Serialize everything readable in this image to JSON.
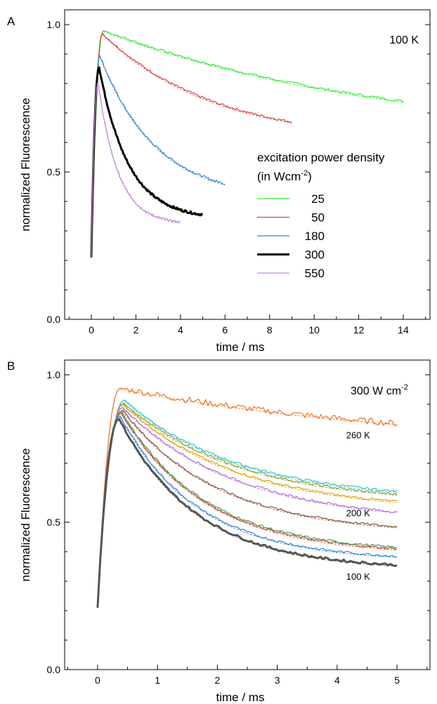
{
  "chart_data": [
    {
      "panel_label": "A",
      "type": "line",
      "xlabel": "time / ms",
      "ylabel": "normalized Fluorescence",
      "xlim": [
        -1.2,
        15.2
      ],
      "ylim": [
        0,
        1.05
      ],
      "x_ticks": [
        0,
        2,
        4,
        6,
        8,
        10,
        12,
        14
      ],
      "y_ticks": [
        0.0,
        0.5,
        1.0
      ],
      "y_tick_labels": [
        "0.0",
        "0.5",
        "1.0"
      ],
      "annotation": "100 K",
      "legend": {
        "title_line1": "excitation power density",
        "title_line2_prefix": "(in Wcm",
        "title_line2_sup": "-2",
        "title_line2_suffix": ")",
        "placement": "center-right",
        "entries": [
          "25",
          "50",
          "180",
          "300",
          "550"
        ]
      },
      "series": [
        {
          "name": "25",
          "color": "#2ee82e",
          "width": 1.2,
          "peak_t": 0.55,
          "peak": 0.98,
          "end_t": 14,
          "end": 0.74,
          "tau": 13
        },
        {
          "name": "50",
          "color": "#e04040",
          "width": 1.2,
          "peak_t": 0.5,
          "peak": 0.97,
          "end_t": 9,
          "end": 0.67,
          "tau": 5
        },
        {
          "name": "180",
          "color": "#3a7fd8",
          "width": 1.2,
          "peak_t": 0.38,
          "peak": 0.895,
          "end_t": 6,
          "end": 0.46,
          "tau": 2.5
        },
        {
          "name": "300",
          "color": "#000000",
          "width": 3,
          "peak_t": 0.35,
          "peak": 0.855,
          "end_t": 5,
          "end": 0.355,
          "tau": 1.3
        },
        {
          "name": "550",
          "color": "#c08ad8",
          "width": 1.2,
          "peak_t": 0.3,
          "peak": 0.805,
          "end_t": 4,
          "end": 0.33,
          "tau": 0.9
        }
      ]
    },
    {
      "panel_label": "B",
      "type": "line",
      "xlabel": "time / ms",
      "ylabel": "normalized Fluorescence",
      "xlim": [
        -0.55,
        5.55
      ],
      "ylim": [
        0,
        1.05
      ],
      "x_ticks": [
        0,
        1,
        2,
        3,
        4,
        5
      ],
      "y_ticks": [
        0.0,
        0.5,
        1.0
      ],
      "y_tick_labels": [
        "0.0",
        "0.5",
        "1.0"
      ],
      "annotation_main": "300 W cm",
      "annotation_sup": "-2",
      "curve_labels": [
        {
          "text": "260 K",
          "t": 4.55,
          "y": 0.785
        },
        {
          "text": "200 K",
          "t": 4.55,
          "y": 0.52
        },
        {
          "text": "100 K",
          "t": 4.55,
          "y": 0.305
        }
      ],
      "series": [
        {
          "label": "260 K",
          "color": "#f07020",
          "width": 1.2,
          "peak_t": 0.38,
          "peak": 0.955,
          "end": 0.835,
          "tau": 5
        },
        {
          "color": "#30c0d0",
          "width": 1.2,
          "peak_t": 0.45,
          "peak": 0.915,
          "end": 0.605,
          "tau": 1.9
        },
        {
          "color": "#8aa030",
          "width": 1.2,
          "peak_t": 0.44,
          "peak": 0.905,
          "end": 0.595,
          "tau": 1.9
        },
        {
          "color": "#d8a000",
          "width": 1.2,
          "peak_t": 0.43,
          "peak": 0.9,
          "end": 0.57,
          "tau": 1.9
        },
        {
          "color": "#b06ad8",
          "width": 1.2,
          "peak_t": 0.42,
          "peak": 0.89,
          "end": 0.535,
          "tau": 1.9
        },
        {
          "label": "200 K",
          "color": "#8a5040",
          "width": 1.2,
          "peak_t": 0.42,
          "peak": 0.88,
          "end": 0.485,
          "tau": 1.6
        },
        {
          "color": "#e04040",
          "width": 1.2,
          "peak_t": 0.4,
          "peak": 0.87,
          "end": 0.41,
          "tau": 1.4
        },
        {
          "color": "#4a9a50",
          "width": 1.2,
          "peak_t": 0.4,
          "peak": 0.875,
          "end": 0.415,
          "tau": 1.4
        },
        {
          "color": "#2a80e0",
          "width": 1.2,
          "peak_t": 0.38,
          "peak": 0.86,
          "end": 0.385,
          "tau": 1.3
        },
        {
          "label": "100 K",
          "color": "#555555",
          "width": 3,
          "peak_t": 0.36,
          "peak": 0.85,
          "end": 0.355,
          "tau": 1.3
        }
      ]
    }
  ]
}
